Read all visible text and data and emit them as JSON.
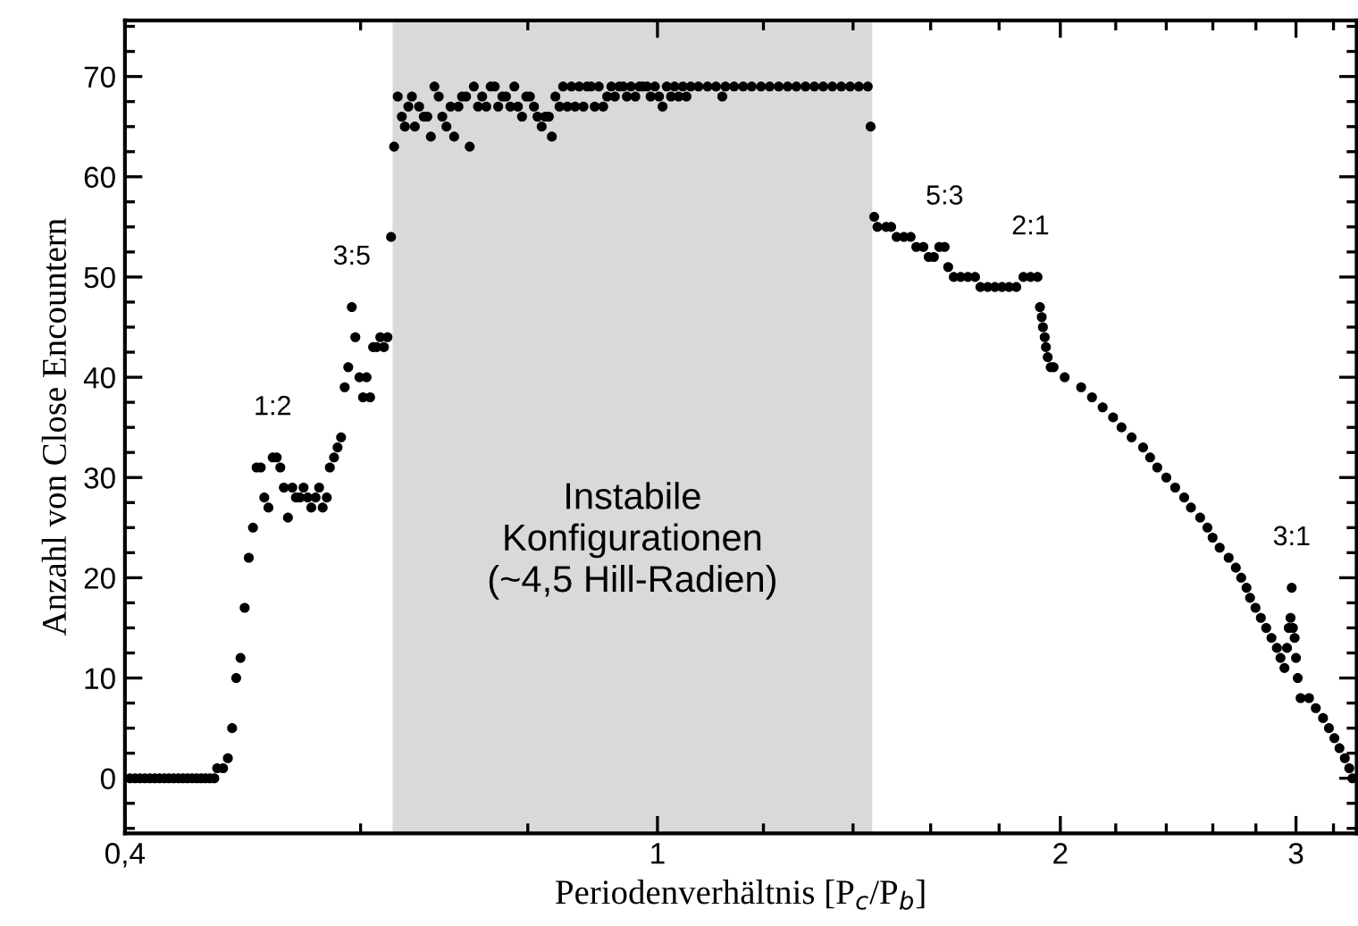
{
  "chart_data": {
    "type": "scatter",
    "xlabel": "Periodenverhältnis [P$_{c}$/P$_{b}$]",
    "ylabel": "Anzahl von Close Encountern",
    "log": "x",
    "grid": false,
    "legend": false,
    "marker": "circle",
    "xlim": [
      0.4,
      3.33
    ],
    "ylim": [
      -5.5,
      75.6
    ],
    "xticks": [
      {
        "value": 0.4,
        "label": "0,4"
      },
      {
        "value": 0.6,
        "label": null
      },
      {
        "value": 0.8,
        "label": null
      },
      1,
      {
        "value": 1.2,
        "label": null
      },
      {
        "value": 1.4,
        "label": null
      },
      {
        "value": 1.6,
        "label": null
      },
      {
        "value": 1.8,
        "label": null
      },
      2,
      {
        "value": 2.2,
        "label": null
      },
      {
        "value": 2.4,
        "label": null
      },
      {
        "value": 2.6,
        "label": null
      },
      {
        "value": 2.8,
        "label": null
      },
      3,
      {
        "value": 3.2,
        "label": null
      }
    ],
    "yticks": [
      {
        "value": -5,
        "label": null
      },
      {
        "value": -2.5,
        "label": null
      },
      0,
      {
        "value": 2.5,
        "label": null
      },
      {
        "value": 5,
        "label": null
      },
      {
        "value": 7.5,
        "label": null
      },
      10,
      {
        "value": 12.5,
        "label": null
      },
      {
        "value": 15,
        "label": null
      },
      {
        "value": 17.5,
        "label": null
      },
      20,
      {
        "value": 22.5,
        "label": null
      },
      {
        "value": 25,
        "label": null
      },
      {
        "value": 27.5,
        "label": null
      },
      30,
      {
        "value": 32.5,
        "label": null
      },
      {
        "value": 35,
        "label": null
      },
      {
        "value": 37.5,
        "label": null
      },
      40,
      {
        "value": 42.5,
        "label": null
      },
      {
        "value": 45,
        "label": null
      },
      {
        "value": 47.5,
        "label": null
      },
      50,
      {
        "value": 52.5,
        "label": null
      },
      {
        "value": 55,
        "label": null
      },
      {
        "value": 57.5,
        "label": null
      },
      60,
      {
        "value": 62.5,
        "label": null
      },
      {
        "value": 65,
        "label": null
      },
      {
        "value": 67.5,
        "label": null
      },
      70,
      {
        "value": 72.5,
        "label": null
      },
      {
        "value": 75,
        "label": null
      }
    ],
    "bands": [
      {
        "axis": "x",
        "from": 0.634,
        "to": 1.447,
        "label": "Instabile\nKonfigurationen\n(~4,5 Hill-Radien)",
        "color": "#d9d9d9"
      }
    ],
    "annotations": [
      {
        "text": "1:2",
        "x": 0.5158,
        "y": 32
      },
      {
        "text": "3:5",
        "x": 0.591,
        "y": 47
      },
      {
        "text": "5:3",
        "x": 1.639,
        "y": 53
      },
      {
        "text": "2:1",
        "x": 1.9,
        "y": 50
      },
      {
        "text": "3:1",
        "x": 2.978,
        "y": 19
      }
    ],
    "series": [
      {
        "color": "#000000",
        "x": [
          0.4035,
          0.407,
          0.4105,
          0.414,
          0.4175,
          0.421,
          0.4245,
          0.428,
          0.4315,
          0.435,
          0.4385,
          0.442,
          0.4455,
          0.449,
          0.4525,
          0.456,
          0.4595,
          0.463,
          0.4665,
          0.4688,
          0.4736,
          0.4775,
          0.481,
          0.4844,
          0.488,
          0.4915,
          0.495,
          0.4986,
          0.5017,
          0.5053,
          0.5084,
          0.512,
          0.5158,
          0.5194,
          0.5226,
          0.5258,
          0.5295,
          0.5335,
          0.5368,
          0.5406,
          0.5439,
          0.5478,
          0.5512,
          0.5553,
          0.5587,
          0.5621,
          0.5661,
          0.5691,
          0.5732,
          0.5767,
          0.5802,
          0.5838,
          0.5874,
          0.591,
          0.5946,
          0.5988,
          0.6025,
          0.6062,
          0.6099,
          0.6131,
          0.6169,
          0.6207,
          0.6246,
          0.6284,
          0.6323,
          0.6356,
          0.6396,
          0.6441,
          0.6475,
          0.6514,
          0.6554,
          0.6587,
          0.6636,
          0.6689,
          0.673,
          0.6771,
          0.6813,
          0.6863,
          0.6906,
          0.6955,
          0.7005,
          0.7048,
          0.71,
          0.7144,
          0.7194,
          0.7239,
          0.7291,
          0.7344,
          0.7396,
          0.7449,
          0.7505,
          0.7558,
          0.7603,
          0.7658,
          0.7706,
          0.7763,
          0.7817,
          0.7865,
          0.7921,
          0.798,
          0.8029,
          0.8086,
          0.8135,
          0.8194,
          0.8244,
          0.8295,
          0.8338,
          0.8389,
          0.8449,
          0.8501,
          0.8564,
          0.8624,
          0.8678,
          0.874,
          0.8804,
          0.8858,
          0.8921,
          0.8977,
          0.904,
          0.9108,
          0.9171,
          0.9237,
          0.9294,
          0.9363,
          0.9429,
          0.9487,
          0.9555,
          0.9626,
          0.9693,
          0.9752,
          0.9822,
          0.9883,
          0.9956,
          1.0027,
          1.0088,
          1.0161,
          1.0236,
          1.0299,
          1.0371,
          1.0446,
          1.0511,
          1.0589,
          1.073,
          1.09,
          1.106,
          1.118,
          1.124,
          1.141,
          1.159,
          1.176,
          1.195,
          1.213,
          1.232,
          1.251,
          1.27,
          1.29,
          1.31,
          1.33,
          1.351,
          1.372,
          1.393,
          1.414,
          1.436,
          1.443,
          1.452,
          1.46,
          1.482,
          1.495,
          1.509,
          1.528,
          1.546,
          1.561,
          1.58,
          1.5946,
          1.609,
          1.624,
          1.639,
          1.649,
          1.665,
          1.685,
          1.706,
          1.727,
          1.743,
          1.765,
          1.787,
          1.809,
          1.831,
          1.854,
          1.877,
          1.9,
          1.923,
          1.931,
          1.937,
          1.941,
          1.947,
          1.951,
          1.957,
          1.967,
          1.977,
          2.015,
          2.073,
          2.112,
          2.151,
          2.19,
          2.222,
          2.261,
          2.306,
          2.334,
          2.363,
          2.4,
          2.437,
          2.475,
          2.504,
          2.544,
          2.576,
          2.599,
          2.631,
          2.672,
          2.705,
          2.73,
          2.755,
          2.772,
          2.798,
          2.824,
          2.85,
          2.876,
          2.903,
          2.921,
          2.941,
          2.954,
          2.963,
          2.972,
          2.978,
          2.984,
          2.993,
          3.0,
          3.009,
          3.024,
          3.068,
          3.104,
          3.143,
          3.175,
          3.205,
          3.233,
          3.263,
          3.288,
          3.306
        ],
        "values": [
          0,
          0,
          0,
          0,
          0,
          0,
          0,
          0,
          0,
          0,
          0,
          0,
          0,
          0,
          0,
          0,
          0,
          0,
          0,
          1,
          1,
          2,
          5,
          10,
          12,
          17,
          22,
          25,
          31,
          31,
          28,
          27,
          32,
          32,
          31,
          29,
          26,
          29,
          28,
          28,
          29,
          28,
          27,
          28,
          29,
          27,
          28,
          31,
          32,
          33,
          34,
          39,
          41,
          47,
          44,
          40,
          38,
          40,
          38,
          43,
          43,
          44,
          43,
          44,
          54,
          63,
          68,
          66,
          65,
          67,
          68,
          65,
          67,
          66,
          66,
          64,
          69,
          68,
          66,
          65,
          67,
          64,
          67,
          68,
          68,
          63,
          69,
          67,
          68,
          67,
          69,
          69,
          67,
          68,
          68,
          67,
          69,
          67,
          66,
          68,
          68,
          67,
          66,
          65,
          66,
          66,
          64,
          68,
          67,
          69,
          67,
          69,
          67,
          69,
          67,
          69,
          69,
          67,
          69,
          67,
          68,
          69,
          68,
          69,
          69,
          68,
          69,
          68,
          69,
          69,
          69,
          68,
          69,
          68,
          67,
          69,
          68,
          69,
          68,
          69,
          68,
          69,
          69,
          69,
          69,
          68,
          69,
          69,
          69,
          69,
          69,
          69,
          69,
          69,
          69,
          69,
          69,
          69,
          69,
          69,
          69,
          69,
          69,
          65,
          56,
          55,
          55,
          55,
          54,
          54,
          54,
          53,
          53,
          52,
          52,
          53,
          53,
          51,
          50,
          50,
          50,
          50,
          49,
          49,
          49,
          49,
          49,
          49,
          50,
          50,
          50,
          47,
          46,
          45,
          44,
          43,
          42,
          41,
          41,
          40,
          39,
          38,
          37,
          36,
          35,
          34,
          33,
          32,
          31,
          30,
          29,
          28,
          27,
          26,
          25,
          24,
          23,
          22,
          21,
          20,
          19,
          18,
          17,
          16,
          15,
          14,
          13,
          12,
          11,
          13,
          15,
          16,
          19,
          15,
          14,
          12,
          10,
          8,
          8,
          7,
          6,
          5,
          4,
          3,
          2,
          1,
          0
        ]
      }
    ]
  }
}
